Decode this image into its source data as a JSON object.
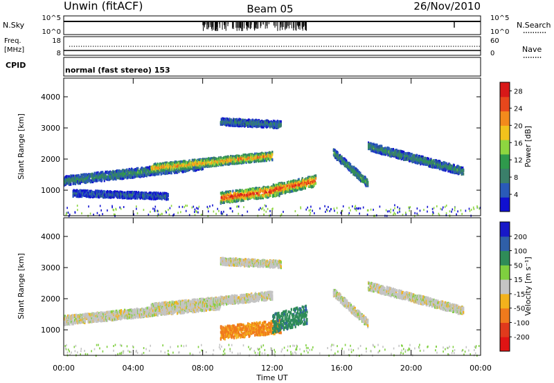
{
  "header": {
    "station": "Unwin (fitACF)",
    "beam": "Beam 05",
    "date": "26/Nov/2010"
  },
  "strip_labels": {
    "nsky": "N.Sky",
    "nsky_ticks": [
      "10^5",
      "10^0"
    ],
    "nsearch": "N.Search",
    "nsearch_ticks": [
      "10^5",
      "10^0"
    ],
    "freq_line1": "Freq.",
    "freq_line2": "[MHz]",
    "freq_ticks": [
      "18",
      "8"
    ],
    "nave": "Nave",
    "nave_ticks": [
      "60",
      "0"
    ],
    "cpid": "CPID",
    "cpid_text": "normal (fast stereo) 153"
  },
  "colors": {
    "power": [
      "#1010d0",
      "#2a5ab8",
      "#3a7f6a",
      "#2f9a4c",
      "#8ed640",
      "#f2c21c",
      "#f38a1c",
      "#e8471c",
      "#d81818"
    ],
    "velocity": [
      "#1818c8",
      "#2f5fa8",
      "#2f8c58",
      "#7fcf3f",
      "#c4c4c4",
      "#f3b21c",
      "#f07a1c",
      "#e03a1c",
      "#e01414"
    ],
    "ground": "#8a8a8a"
  },
  "chart_data": [
    {
      "type": "heatmap",
      "title": "Power",
      "xlabel": "Time UT",
      "ylabel": "Slant Range [km]",
      "xlim_hours": [
        0,
        24
      ],
      "ylim_km": [
        180,
        4600
      ],
      "x_ticks": [
        "00:00",
        "04:00",
        "08:00",
        "12:00",
        "16:00",
        "20:00",
        "00:00"
      ],
      "y_ticks": [
        1000,
        2000,
        3000,
        4000
      ],
      "colorbar": {
        "label": "Power [dB]",
        "ticks": [
          4,
          8,
          12,
          16,
          20,
          24,
          28
        ],
        "range": [
          0,
          30
        ]
      },
      "echo_bands": [
        {
          "t0": 0.0,
          "t1": 8.0,
          "r_start": 1300,
          "r_end": 1800,
          "width": 280,
          "level": 0.35
        },
        {
          "t0": 5.0,
          "t1": 12.0,
          "r_start": 1700,
          "r_end": 2100,
          "width": 260,
          "level": 0.75
        },
        {
          "t0": 9.0,
          "t1": 12.5,
          "r_start": 750,
          "r_end": 1000,
          "width": 350,
          "level": 0.95
        },
        {
          "t0": 12.0,
          "t1": 14.5,
          "r_start": 1000,
          "r_end": 1300,
          "width": 350,
          "level": 0.9
        },
        {
          "t0": 15.5,
          "t1": 17.5,
          "r_start": 2200,
          "r_end": 1200,
          "width": 250,
          "level": 0.4
        },
        {
          "t0": 17.5,
          "t1": 23.0,
          "r_start": 2400,
          "r_end": 1600,
          "width": 250,
          "level": 0.35
        },
        {
          "t0": 0.5,
          "t1": 6.0,
          "r_start": 900,
          "r_end": 800,
          "width": 200,
          "level": 0.2
        },
        {
          "t0": 9.0,
          "t1": 12.5,
          "r_start": 3200,
          "r_end": 3100,
          "width": 220,
          "level": 0.3
        }
      ]
    },
    {
      "type": "heatmap",
      "title": "Velocity",
      "xlabel": "Time UT",
      "ylabel": "Slant Range [km]",
      "xlim_hours": [
        0,
        24
      ],
      "ylim_km": [
        180,
        4600
      ],
      "x_ticks": [
        "00:00",
        "04:00",
        "08:00",
        "12:00",
        "16:00",
        "20:00",
        "00:00"
      ],
      "y_ticks": [
        1000,
        2000,
        3000,
        4000
      ],
      "colorbar": {
        "label": "Velocity [m s⁻¹]",
        "ticks": [
          200,
          100,
          50,
          15,
          -15,
          -50,
          -100,
          -200
        ]
      },
      "echo_bands": [
        {
          "t0": 0.0,
          "t1": 9.0,
          "r_start": 1300,
          "r_end": 1800,
          "width": 280,
          "velocity": 0
        },
        {
          "t0": 5.0,
          "t1": 12.0,
          "r_start": 1700,
          "r_end": 2100,
          "width": 260,
          "velocity": 0
        },
        {
          "t0": 9.0,
          "t1": 12.5,
          "r_start": 900,
          "r_end": 1100,
          "width": 420,
          "velocity": -40
        },
        {
          "t0": 12.0,
          "t1": 14.0,
          "r_start": 1200,
          "r_end": 1500,
          "width": 600,
          "velocity": 60
        },
        {
          "t0": 15.5,
          "t1": 17.5,
          "r_start": 2200,
          "r_end": 1200,
          "width": 250,
          "velocity": 0
        },
        {
          "t0": 17.5,
          "t1": 23.0,
          "r_start": 2400,
          "r_end": 1600,
          "width": 250,
          "velocity": 0
        },
        {
          "t0": 9.0,
          "t1": 12.5,
          "r_start": 3200,
          "r_end": 3100,
          "width": 220,
          "velocity": 0
        }
      ]
    }
  ]
}
